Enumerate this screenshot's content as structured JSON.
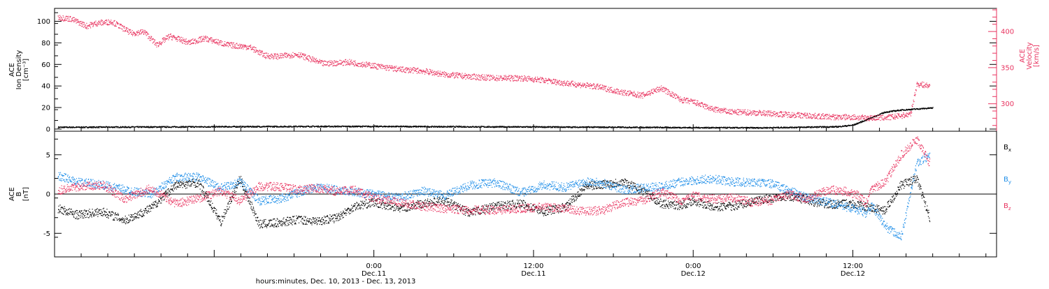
{
  "colors": {
    "axis": "#000000",
    "red": "#e8335f",
    "blue": "#1e8ee8",
    "black": "#000000"
  },
  "chart_data": [
    {
      "type": "scatter",
      "ylabel_lines": [
        "ACE",
        "Ion Density",
        "[cm⁻³]"
      ],
      "ylabel2_lines": [
        "ACE",
        "Velocity",
        "[km/s]"
      ],
      "ylim": [
        -2,
        112
      ],
      "yticks": [
        0,
        20,
        40,
        60,
        80,
        100
      ],
      "ylim2": [
        262,
        432
      ],
      "yticks2": [
        300,
        350,
        400
      ],
      "series": [
        {
          "axis": "left",
          "color": "#000000",
          "x": [
            -0.99,
            -0.8,
            -0.6,
            -0.4,
            -0.2,
            0,
            0.3,
            0.6,
            0.8,
            1.0,
            1.2,
            1.45,
            1.5,
            1.55,
            1.6,
            1.65,
            1.7,
            1.75
          ],
          "y": [
            2,
            2.2,
            2.4,
            2.6,
            2.8,
            2.8,
            2.5,
            2.2,
            2.0,
            1.7,
            1.5,
            2.5,
            4,
            10,
            16,
            18,
            19,
            20
          ]
        },
        {
          "axis": "right",
          "color": "#e8335f",
          "x": [
            -0.99,
            -0.95,
            -0.9,
            -0.87,
            -0.82,
            -0.76,
            -0.72,
            -0.68,
            -0.64,
            -0.58,
            -0.53,
            -0.46,
            -0.39,
            -0.34,
            -0.3,
            -0.24,
            -0.16,
            -0.08,
            0,
            0.08,
            0.15,
            0.22,
            0.3,
            0.38,
            0.46,
            0.53,
            0.6,
            0.7,
            0.78,
            0.84,
            0.9,
            0.96,
            1.0,
            1.06,
            1.12,
            1.2,
            1.28,
            1.36,
            1.44,
            1.5,
            1.53,
            1.56,
            1.59,
            1.62,
            1.65,
            1.68,
            1.7,
            1.74
          ],
          "y": [
            420,
            418,
            408,
            412,
            414,
            398,
            400,
            382,
            394,
            385,
            391,
            382,
            379,
            367,
            366,
            369,
            356,
            358,
            353,
            348,
            346,
            341,
            338,
            336,
            336,
            333,
            329,
            324,
            316,
            312,
            322,
            306,
            303,
            293,
            289,
            288,
            286,
            284,
            282,
            282,
            281,
            281,
            281,
            282,
            284,
            286,
            328,
            325
          ]
        }
      ]
    },
    {
      "type": "scatter",
      "ylabel_lines": [
        "ACE",
        "B",
        "[nT]"
      ],
      "ylim": [
        -8,
        8
      ],
      "yticks": [
        -5,
        0,
        5
      ],
      "series": [
        {
          "name": "Bx",
          "color": "#000000",
          "x": [
            -0.99,
            -0.93,
            -0.85,
            -0.78,
            -0.7,
            -0.62,
            -0.55,
            -0.48,
            -0.42,
            -0.36,
            -0.3,
            -0.24,
            -0.18,
            -0.12,
            -0.06,
            0,
            0.08,
            0.15,
            0.22,
            0.3,
            0.38,
            0.46,
            0.53,
            0.6,
            0.66,
            0.72,
            0.78,
            0.84,
            0.9,
            0.96,
            1.0,
            1.06,
            1.12,
            1.18,
            1.24,
            1.3,
            1.36,
            1.42,
            1.48,
            1.52,
            1.54,
            1.56,
            1.6,
            1.65,
            1.7,
            1.74
          ],
          "y": [
            -1.8,
            -2.6,
            -2.2,
            -3.3,
            -1.8,
            1.2,
            1.5,
            -3.5,
            2.0,
            -3.8,
            -3.6,
            -3.2,
            -3.4,
            -3.0,
            -1.5,
            -1.0,
            -1.8,
            -1.2,
            -0.8,
            -2.4,
            -1.5,
            -1.2,
            -2.2,
            -1.6,
            1.0,
            1.3,
            1.6,
            0.5,
            -1.2,
            -1.4,
            -0.8,
            -1.6,
            -1.5,
            -1.0,
            -0.5,
            -0.2,
            -0.8,
            -1.3,
            -1.2,
            -1.4,
            -1.6,
            -1.8,
            -2.0,
            1.2,
            2.0,
            -3.0
          ]
        },
        {
          "name": "By",
          "color": "#1e8ee8",
          "x": [
            -0.99,
            -0.93,
            -0.85,
            -0.78,
            -0.7,
            -0.62,
            -0.55,
            -0.48,
            -0.42,
            -0.36,
            -0.3,
            -0.24,
            -0.18,
            -0.12,
            -0.06,
            0,
            0.08,
            0.15,
            0.22,
            0.3,
            0.38,
            0.46,
            0.53,
            0.6,
            0.66,
            0.72,
            0.78,
            0.84,
            0.9,
            0.96,
            1.0,
            1.06,
            1.12,
            1.18,
            1.24,
            1.3,
            1.36,
            1.42,
            1.48,
            1.52,
            1.54,
            1.56,
            1.6,
            1.65,
            1.7,
            1.74
          ],
          "y": [
            2.4,
            1.6,
            1.2,
            0.6,
            0.0,
            2.2,
            2.2,
            0.8,
            1.6,
            -0.8,
            -0.6,
            0.2,
            1.0,
            0.6,
            0.3,
            0.0,
            -0.4,
            0.5,
            -0.2,
            1.2,
            1.5,
            0.2,
            1.2,
            0.9,
            1.7,
            1.4,
            0.6,
            0.8,
            1.0,
            1.6,
            1.8,
            2.0,
            1.6,
            1.5,
            1.4,
            0.5,
            -0.5,
            -1.0,
            -1.6,
            -2.0,
            -2.4,
            -1.5,
            -4.0,
            -5.5,
            4.0,
            5.0
          ]
        },
        {
          "name": "Bz",
          "color": "#e8335f",
          "x": [
            -0.99,
            -0.93,
            -0.85,
            -0.78,
            -0.7,
            -0.62,
            -0.55,
            -0.48,
            -0.42,
            -0.36,
            -0.3,
            -0.24,
            -0.18,
            -0.12,
            -0.06,
            0,
            0.08,
            0.15,
            0.22,
            0.3,
            0.38,
            0.46,
            0.53,
            0.6,
            0.66,
            0.72,
            0.78,
            0.84,
            0.9,
            0.96,
            1.0,
            1.06,
            1.12,
            1.18,
            1.24,
            1.3,
            1.36,
            1.42,
            1.48,
            1.52,
            1.54,
            1.56,
            1.6,
            1.65,
            1.7,
            1.74
          ],
          "y": [
            0.5,
            1.0,
            1.2,
            -0.6,
            0.8,
            -1.2,
            -0.5,
            0.4,
            -0.8,
            1.0,
            1.0,
            0.6,
            0.8,
            0.4,
            0.6,
            -0.5,
            -1.0,
            -1.5,
            -1.8,
            -2.0,
            -2.0,
            -1.8,
            -1.6,
            -1.8,
            -2.2,
            -2.0,
            -1.0,
            -0.8,
            0.3,
            -0.8,
            -0.2,
            -0.6,
            -0.4,
            -1.0,
            -0.8,
            0.0,
            -0.6,
            0.6,
            0.4,
            -0.2,
            -1.2,
            0.8,
            1.5,
            5.0,
            7.0,
            4.0
          ]
        }
      ],
      "legend": [
        {
          "base": "B",
          "sub": "x",
          "color": "#000000"
        },
        {
          "base": "B",
          "sub": "y",
          "color": "#1e8ee8"
        },
        {
          "base": "B",
          "sub": "z",
          "color": "#e8335f"
        }
      ]
    }
  ],
  "x_axis": {
    "xlim": [
      -1,
      2
    ],
    "ticks": [
      {
        "x": 0.0,
        "line1": "0:00",
        "line2": "Dec.11"
      },
      {
        "x": 0.5,
        "line1": "12:00",
        "line2": "Dec.11"
      },
      {
        "x": 1.0,
        "line1": "0:00",
        "line2": "Dec.12"
      },
      {
        "x": 1.5,
        "line1": "12:00",
        "line2": "Dec.12"
      }
    ],
    "title": "hours:minutes, Dec. 10, 2013 - Dec. 13, 2013"
  }
}
